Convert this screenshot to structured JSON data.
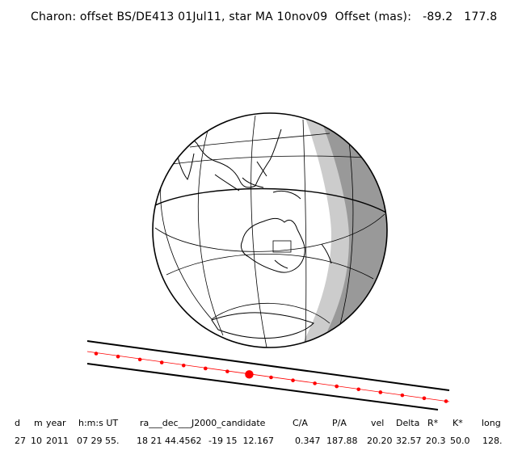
{
  "title": {
    "text": "Charon: offset BS/DE413 01Jul11, star MA 10nov09  Offset (mas):   -89.2   177.8"
  },
  "table": {
    "headers": {
      "d": "d",
      "m": "m",
      "year": "year",
      "hms": "h:m:s UT",
      "radec": "ra___dec___J2000_candidate",
      "ca": "C/A",
      "pa": "P/A",
      "vel": "vel",
      "delta": "Delta",
      "rstar": "R*",
      "kstar": "K*",
      "long": "long"
    },
    "values": {
      "d": "27",
      "m": "10",
      "year": "2011",
      "hms": "07 29 55.",
      "ra": "18 21 44.4562",
      "dec": "-19 15  12.167",
      "ca": "0.347",
      "pa": "187.88",
      "vel": "20.20",
      "delta": "32.57",
      "rstar": "20.3",
      "kstar": "50.0",
      "long": "128."
    }
  },
  "colors": {
    "night": "#999999",
    "twilight": "#cccccc",
    "day": "#ffffff",
    "lines": "#000000",
    "track": "#ff0000"
  },
  "track": {
    "tick_count": 17,
    "closest_approach_index": 7
  }
}
